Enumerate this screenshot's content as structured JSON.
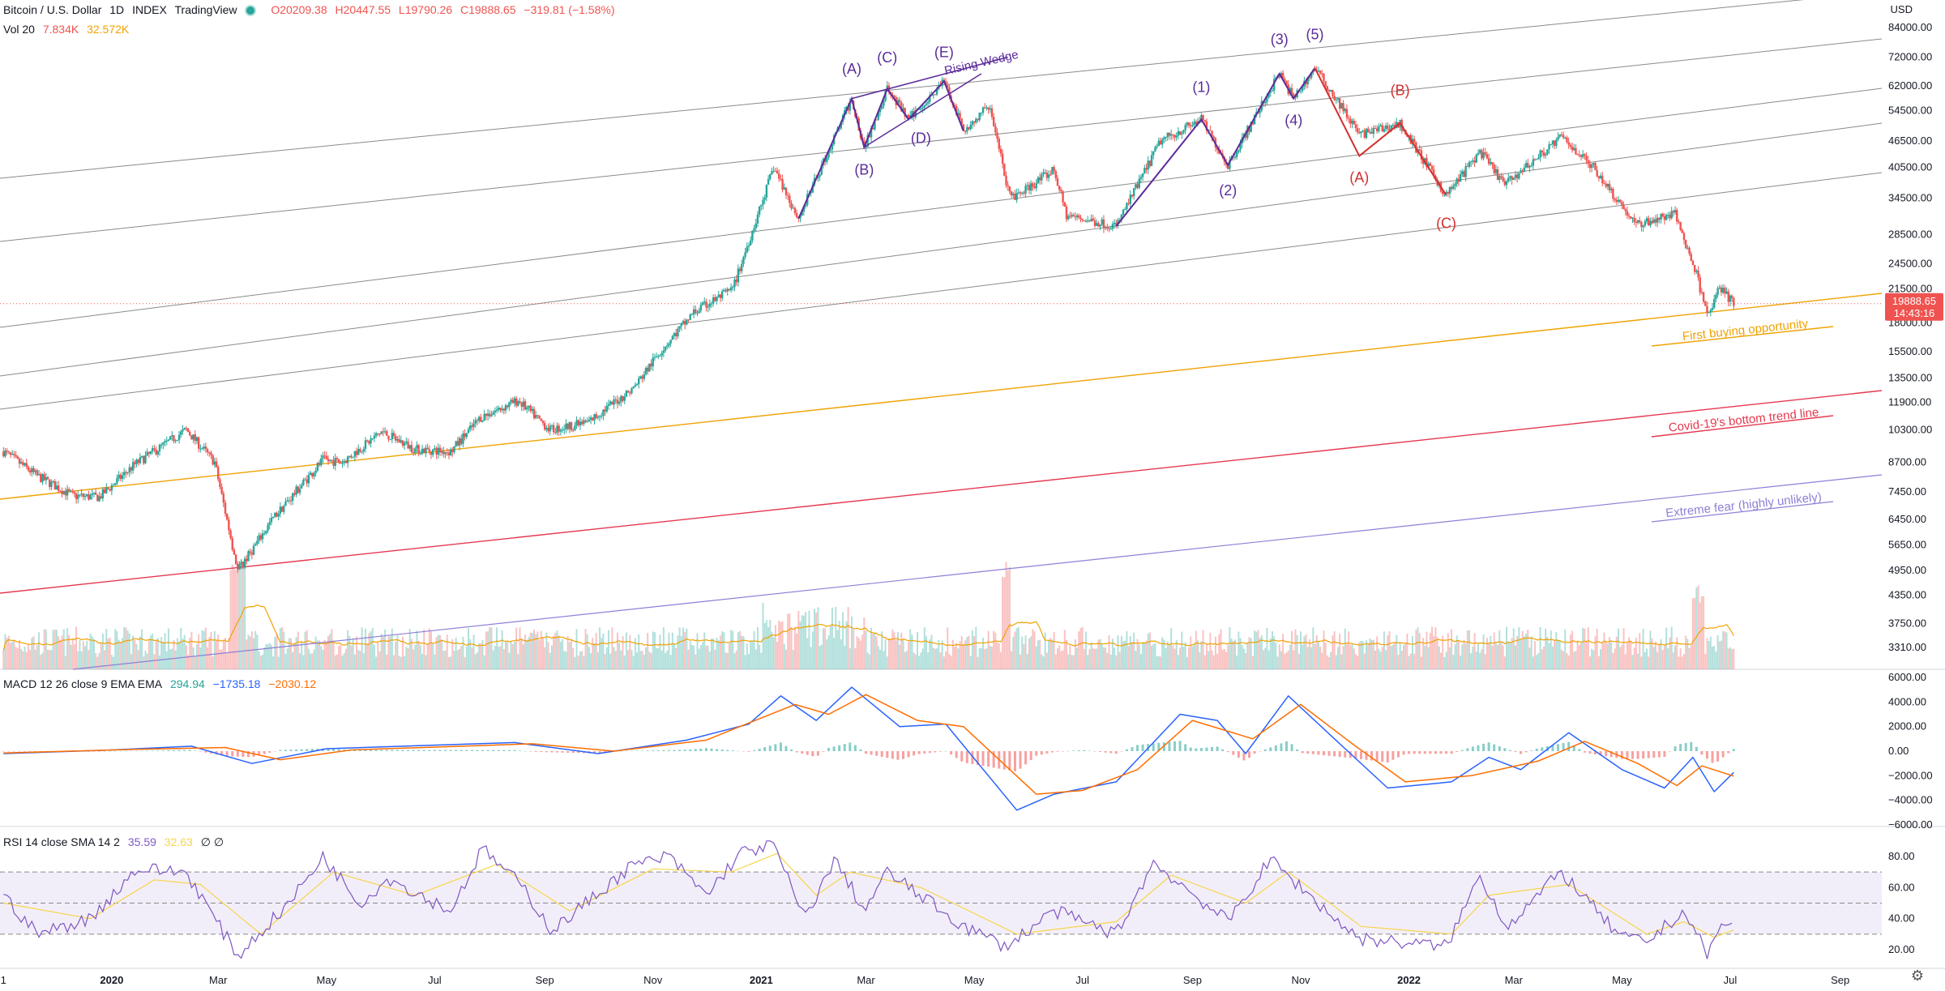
{
  "header": {
    "symbol": "Bitcoin / U.S. Dollar",
    "interval": "1D",
    "exchange": "INDEX",
    "source": "TradingView",
    "open": "O20209.38",
    "high": "H20447.55",
    "low": "L19790.26",
    "close": "C19888.65",
    "change": "−319.81 (−1.58%)",
    "vol_label": "Vol 20",
    "vol_value": "7.834K",
    "vol_ma": "32.572K",
    "currency": "USD"
  },
  "macd_legend": {
    "label": "MACD 12 26 close 9 EMA EMA",
    "hist": "294.94",
    "macd": "−1735.18",
    "signal": "−2030.12"
  },
  "rsi_legend": {
    "label": "RSI 14 close SMA 14 2",
    "rsi": "35.59",
    "sma": "32.63",
    "extra": "∅ ∅"
  },
  "price_label": {
    "price": "19888.65",
    "countdown": "14:43:16"
  },
  "colors": {
    "up": "#26a69a",
    "down": "#ef5350",
    "purple": "#5b2c99",
    "red_wave": "#d32f2f",
    "orange_line": "#f0a202",
    "red_line": "#e53950",
    "lavender": "#8f7fd6",
    "macd": "#2962ff",
    "signal": "#ff6d00",
    "rsi": "#7e57c2",
    "rsi_sma": "#f7d54a"
  },
  "chart_data": [
    {
      "type": "candlestick",
      "title": "Bitcoin / U.S. Dollar",
      "scale": "log",
      "ylim": [
        3000,
        90000
      ],
      "y_ticks": [
        "84000.00",
        "72000.00",
        "62000.00",
        "54500.00",
        "46500.00",
        "40500.00",
        "34500.00",
        "28500.00",
        "24500.00",
        "21500.00",
        "18000.00",
        "15500.00",
        "13500.00",
        "11900.00",
        "10300.00",
        "8700.00",
        "7450.00",
        "6450.00",
        "5650.00",
        "4950.00",
        "4350.00",
        "3750.00",
        "3310.00"
      ],
      "x_ticks": [
        "1",
        "2020",
        "Mar",
        "May",
        "Jul",
        "Sep",
        "Nov",
        "2021",
        "Mar",
        "May",
        "Jul",
        "Sep",
        "Nov",
        "2022",
        "Mar",
        "May",
        "Jul",
        "Sep"
      ],
      "x_tick_dates": [
        "2019-11-01",
        "2020-01-01",
        "2020-03-01",
        "2020-05-01",
        "2020-07-01",
        "2020-09-01",
        "2020-11-01",
        "2021-01-01",
        "2021-03-01",
        "2021-05-01",
        "2021-07-01",
        "2021-09-01",
        "2021-11-01",
        "2022-01-01",
        "2022-03-01",
        "2022-05-01",
        "2022-07-01",
        "2022-09-01"
      ],
      "close_path": [
        [
          "2019-11-01",
          9200
        ],
        [
          "2019-11-20",
          8100
        ],
        [
          "2019-12-10",
          7300
        ],
        [
          "2019-12-25",
          7250
        ],
        [
          "2020-01-14",
          8600
        ],
        [
          "2020-02-12",
          10300
        ],
        [
          "2020-02-28",
          8700
        ],
        [
          "2020-03-12",
          4950
        ],
        [
          "2020-03-16",
          5200
        ],
        [
          "2020-04-01",
          6500
        ],
        [
          "2020-04-29",
          8800
        ],
        [
          "2020-05-10",
          8700
        ],
        [
          "2020-06-01",
          10200
        ],
        [
          "2020-06-20",
          9300
        ],
        [
          "2020-07-10",
          9200
        ],
        [
          "2020-07-27",
          11000
        ],
        [
          "2020-08-17",
          12000
        ],
        [
          "2020-09-04",
          10300
        ],
        [
          "2020-09-25",
          10700
        ],
        [
          "2020-10-21",
          12800
        ],
        [
          "2020-11-05",
          15500
        ],
        [
          "2020-11-24",
          19000
        ],
        [
          "2020-12-16",
          21500
        ],
        [
          "2021-01-08",
          40500
        ],
        [
          "2021-01-22",
          31000
        ],
        [
          "2021-02-21",
          58000
        ],
        [
          "2021-02-28",
          45000
        ],
        [
          "2021-03-13",
          61000
        ],
        [
          "2021-03-25",
          52000
        ],
        [
          "2021-04-14",
          63500
        ],
        [
          "2021-04-25",
          49000
        ],
        [
          "2021-05-10",
          56000
        ],
        [
          "2021-05-19",
          37000
        ],
        [
          "2021-05-23",
          34500
        ],
        [
          "2021-06-15",
          40000
        ],
        [
          "2021-06-22",
          31500
        ],
        [
          "2021-07-20",
          29800
        ],
        [
          "2021-08-14",
          46500
        ],
        [
          "2021-09-06",
          52000
        ],
        [
          "2021-09-21",
          41000
        ],
        [
          "2021-10-20",
          66000
        ],
        [
          "2021-10-28",
          58000
        ],
        [
          "2021-11-09",
          68000
        ],
        [
          "2021-11-26",
          54000
        ],
        [
          "2021-12-04",
          48000
        ],
        [
          "2021-12-27",
          50800
        ],
        [
          "2022-01-22",
          35000
        ],
        [
          "2022-02-10",
          44000
        ],
        [
          "2022-02-24",
          37000
        ],
        [
          "2022-03-28",
          47500
        ],
        [
          "2022-04-15",
          40500
        ],
        [
          "2022-05-09",
          30000
        ],
        [
          "2022-05-31",
          31800
        ],
        [
          "2022-06-13",
          22500
        ],
        [
          "2022-06-18",
          18500
        ],
        [
          "2022-06-25",
          21500
        ],
        [
          "2022-07-03",
          19888
        ]
      ],
      "volume_ylim": [
        0,
        100
      ]
    },
    {
      "type": "line",
      "title": "MACD 12 26 close 9 EMA EMA",
      "ylim": [
        -6000,
        6000
      ],
      "y_ticks": [
        "6000.00",
        "4000.00",
        "2000.00",
        "0.00",
        "−2000.00",
        "−4000.00",
        "−6000.00"
      ],
      "macd_path": [
        [
          "2019-11-01",
          -200
        ],
        [
          "2020-01-01",
          100
        ],
        [
          "2020-02-15",
          400
        ],
        [
          "2020-03-20",
          -1000
        ],
        [
          "2020-05-01",
          200
        ],
        [
          "2020-08-15",
          700
        ],
        [
          "2020-10-01",
          -200
        ],
        [
          "2020-11-20",
          900
        ],
        [
          "2020-12-25",
          2200
        ],
        [
          "2021-01-12",
          4500
        ],
        [
          "2021-02-01",
          2500
        ],
        [
          "2021-02-21",
          5200
        ],
        [
          "2021-03-20",
          2000
        ],
        [
          "2021-04-15",
          2200
        ],
        [
          "2021-05-25",
          -4800
        ],
        [
          "2021-06-15",
          -3500
        ],
        [
          "2021-07-20",
          -2500
        ],
        [
          "2021-08-25",
          3000
        ],
        [
          "2021-09-15",
          2500
        ],
        [
          "2021-10-01",
          -200
        ],
        [
          "2021-10-25",
          4500
        ],
        [
          "2021-11-20",
          1000
        ],
        [
          "2021-12-20",
          -3000
        ],
        [
          "2022-01-25",
          -2500
        ],
        [
          "2022-02-15",
          -500
        ],
        [
          "2022-03-05",
          -1500
        ],
        [
          "2022-04-01",
          1500
        ],
        [
          "2022-05-01",
          -1500
        ],
        [
          "2022-05-25",
          -3000
        ],
        [
          "2022-06-10",
          -500
        ],
        [
          "2022-06-22",
          -3300
        ],
        [
          "2022-07-03",
          -1735
        ]
      ],
      "signal_path": [
        [
          "2019-11-01",
          -150
        ],
        [
          "2020-01-15",
          150
        ],
        [
          "2020-03-05",
          300
        ],
        [
          "2020-04-05",
          -700
        ],
        [
          "2020-05-15",
          100
        ],
        [
          "2020-08-25",
          600
        ],
        [
          "2020-10-10",
          0
        ],
        [
          "2020-12-01",
          900
        ],
        [
          "2021-01-20",
          3800
        ],
        [
          "2021-02-08",
          3000
        ],
        [
          "2021-03-01",
          4600
        ],
        [
          "2021-03-30",
          2500
        ],
        [
          "2021-04-25",
          2000
        ],
        [
          "2021-06-05",
          -3500
        ],
        [
          "2021-07-01",
          -3200
        ],
        [
          "2021-08-01",
          -1500
        ],
        [
          "2021-09-01",
          2500
        ],
        [
          "2021-10-05",
          1000
        ],
        [
          "2021-11-01",
          3800
        ],
        [
          "2021-12-01",
          500
        ],
        [
          "2021-12-30",
          -2500
        ],
        [
          "2022-02-05",
          -2000
        ],
        [
          "2022-03-15",
          -800
        ],
        [
          "2022-04-10",
          800
        ],
        [
          "2022-05-10",
          -1000
        ],
        [
          "2022-06-01",
          -2800
        ],
        [
          "2022-06-15",
          -1200
        ],
        [
          "2022-07-03",
          -2030
        ]
      ]
    },
    {
      "type": "line",
      "title": "RSI 14 close SMA 14 2",
      "ylim": [
        12,
        92
      ],
      "y_ticks": [
        "80.00",
        "60.00",
        "40.00",
        "20.00"
      ],
      "band": [
        30,
        70
      ],
      "rsi_path": [
        [
          "2019-11-01",
          55
        ],
        [
          "2019-11-20",
          30
        ],
        [
          "2019-12-20",
          40
        ],
        [
          "2020-01-15",
          72
        ],
        [
          "2020-02-12",
          70
        ],
        [
          "2020-03-12",
          16
        ],
        [
          "2020-04-10",
          50
        ],
        [
          "2020-04-29",
          80
        ],
        [
          "2020-05-20",
          50
        ],
        [
          "2020-06-05",
          66
        ],
        [
          "2020-07-10",
          45
        ],
        [
          "2020-07-28",
          85
        ],
        [
          "2020-08-20",
          60
        ],
        [
          "2020-09-05",
          32
        ],
        [
          "2020-10-20",
          74
        ],
        [
          "2020-11-10",
          80
        ],
        [
          "2020-12-01",
          55
        ],
        [
          "2020-12-20",
          82
        ],
        [
          "2021-01-08",
          88
        ],
        [
          "2021-01-25",
          40
        ],
        [
          "2021-02-12",
          78
        ],
        [
          "2021-02-28",
          45
        ],
        [
          "2021-03-13",
          70
        ],
        [
          "2021-04-25",
          35
        ],
        [
          "2021-05-19",
          22
        ],
        [
          "2021-06-15",
          45
        ],
        [
          "2021-07-20",
          30
        ],
        [
          "2021-08-10",
          76
        ],
        [
          "2021-09-21",
          38
        ],
        [
          "2021-10-15",
          78
        ],
        [
          "2021-11-25",
          35
        ],
        [
          "2021-12-05",
          27
        ],
        [
          "2022-01-22",
          22
        ],
        [
          "2022-02-10",
          68
        ],
        [
          "2022-02-25",
          35
        ],
        [
          "2022-03-28",
          70
        ],
        [
          "2022-04-30",
          28
        ],
        [
          "2022-05-15",
          25
        ],
        [
          "2022-06-05",
          45
        ],
        [
          "2022-06-18",
          17
        ],
        [
          "2022-06-28",
          38
        ],
        [
          "2022-07-03",
          35.6
        ]
      ],
      "rsi_sma_path": [
        [
          "2019-11-01",
          50
        ],
        [
          "2019-12-20",
          40
        ],
        [
          "2020-01-25",
          65
        ],
        [
          "2020-02-20",
          62
        ],
        [
          "2020-03-25",
          30
        ],
        [
          "2020-05-05",
          70
        ],
        [
          "2020-06-20",
          55
        ],
        [
          "2020-08-05",
          75
        ],
        [
          "2020-09-15",
          45
        ],
        [
          "2020-11-01",
          72
        ],
        [
          "2020-12-15",
          70
        ],
        [
          "2021-01-10",
          82
        ],
        [
          "2021-02-01",
          55
        ],
        [
          "2021-02-20",
          70
        ],
        [
          "2021-04-01",
          60
        ],
        [
          "2021-05-25",
          30
        ],
        [
          "2021-07-20",
          38
        ],
        [
          "2021-08-20",
          68
        ],
        [
          "2021-10-01",
          50
        ],
        [
          "2021-10-25",
          70
        ],
        [
          "2021-12-05",
          35
        ],
        [
          "2022-01-25",
          30
        ],
        [
          "2022-02-15",
          55
        ],
        [
          "2022-04-01",
          62
        ],
        [
          "2022-05-15",
          30
        ],
        [
          "2022-06-05",
          38
        ],
        [
          "2022-06-22",
          28
        ],
        [
          "2022-07-03",
          32.6
        ]
      ]
    }
  ],
  "annotations": {
    "wave_labels_purple": [
      "(A)",
      "(B)",
      "(C)",
      "(D)",
      "(E)",
      "(1)",
      "(2)",
      "(3)",
      "(4)",
      "(5)"
    ],
    "wave_labels_red": [
      "(A)",
      "(B)",
      "(C)"
    ],
    "rising_wedge": "Rising Wedge",
    "first_buying": "First buying opportunity",
    "covid_line": "Covid-19's bottom trend line",
    "extreme_fear": "Extreme fear (highly unlikely)"
  }
}
